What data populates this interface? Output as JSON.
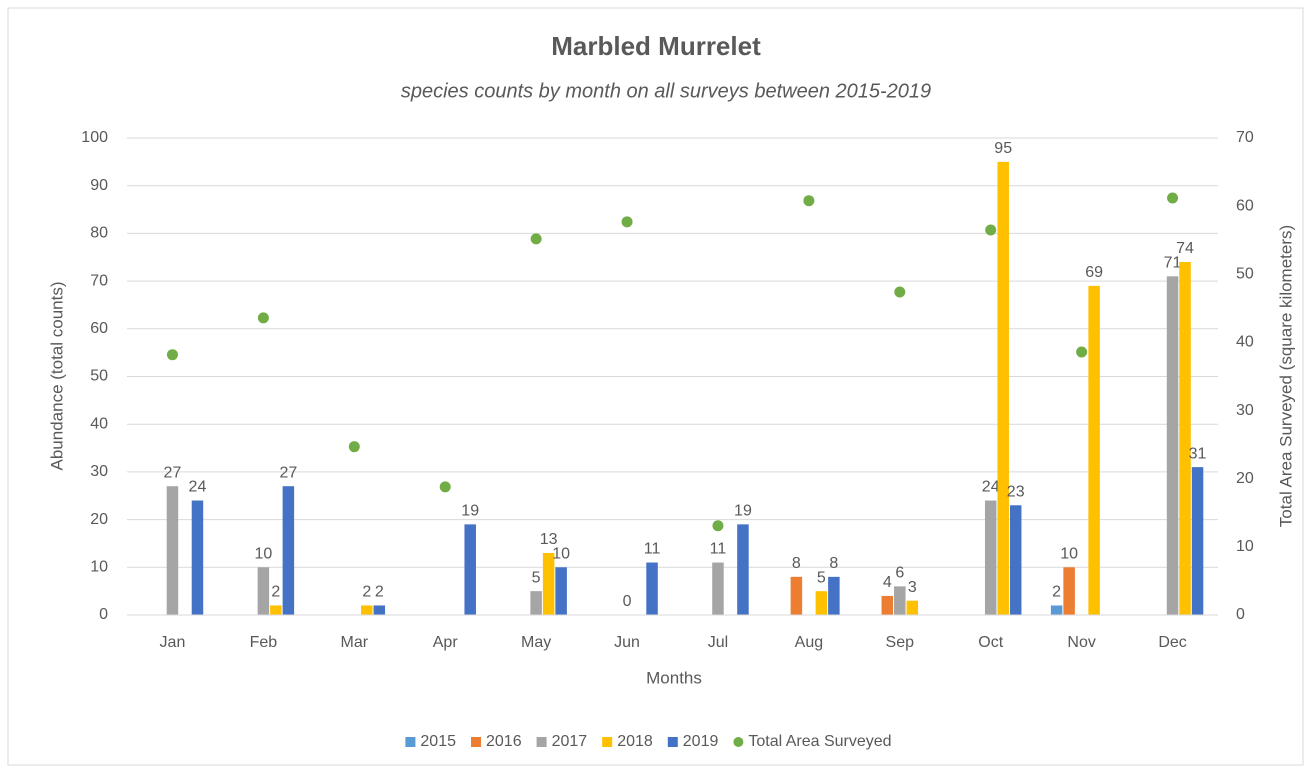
{
  "chart_data": {
    "type": "bar",
    "title": "Marbled Murrelet",
    "subtitle": "species counts by month on all surveys between 2015-2019",
    "x_label": "Months",
    "y_label": "Abundance (total counts)",
    "y2_label": "Total Area Surveyed (square kilometers)",
    "categories": [
      "Jan",
      "Feb",
      "Mar",
      "Apr",
      "May",
      "Jun",
      "Jul",
      "Aug",
      "Sep",
      "Oct",
      "Nov",
      "Dec"
    ],
    "series": [
      {
        "name": "2015",
        "color": "#5b9bd5",
        "values": [
          null,
          null,
          null,
          null,
          null,
          null,
          null,
          null,
          null,
          null,
          2,
          null
        ]
      },
      {
        "name": "2016",
        "color": "#ed7d31",
        "values": [
          null,
          null,
          null,
          null,
          null,
          null,
          null,
          8,
          4,
          null,
          10,
          null
        ]
      },
      {
        "name": "2017",
        "color": "#a5a5a5",
        "values": [
          27,
          10,
          null,
          null,
          5,
          0,
          11,
          null,
          6,
          24,
          null,
          71
        ]
      },
      {
        "name": "2018",
        "color": "#ffc000",
        "values": [
          null,
          2,
          2,
          null,
          13,
          null,
          null,
          5,
          3,
          95,
          69,
          74
        ]
      },
      {
        "name": "2019",
        "color": "#4472c4",
        "values": [
          24,
          27,
          2,
          19,
          10,
          11,
          19,
          8,
          null,
          23,
          null,
          31
        ]
      },
      {
        "name": "Total Area Surveyed",
        "color": "#70ad47",
        "type": "scatter",
        "axis": "y2",
        "values": [
          38.2,
          43.6,
          24.7,
          18.8,
          55.2,
          57.7,
          13.1,
          60.8,
          47.4,
          56.5,
          38.6,
          61.2
        ]
      }
    ],
    "ylim": [
      0,
      100
    ],
    "yticks": [
      0,
      10,
      20,
      30,
      40,
      50,
      60,
      70,
      80,
      90,
      100
    ],
    "y2lim": [
      0,
      70
    ],
    "y2ticks": [
      0,
      10,
      20,
      30,
      40,
      50,
      60,
      70
    ],
    "grid": true,
    "legend": "bottom"
  }
}
